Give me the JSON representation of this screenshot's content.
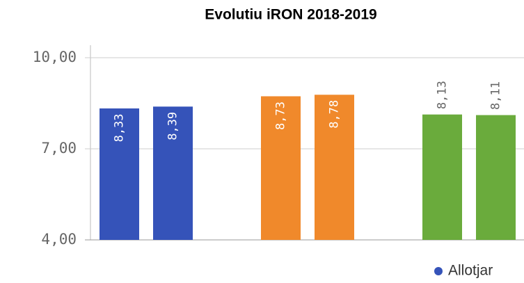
{
  "chart_data": {
    "type": "bar",
    "title": "Evolutiu iRON 2018-2019",
    "series": [
      {
        "name": "Allotjar",
        "color": "#3553b9",
        "values": [
          8.33,
          8.39
        ],
        "value_labels": [
          "8,33",
          "8,39"
        ],
        "label_position": "inside"
      },
      {
        "color": "#f0892b",
        "values": [
          8.73,
          8.78
        ],
        "value_labels": [
          "8,73",
          "8,78"
        ],
        "label_position": "inside"
      },
      {
        "color": "#6aab3c",
        "values": [
          8.13,
          8.11
        ],
        "value_labels": [
          "8,13",
          "8,11"
        ],
        "label_position": "outside"
      }
    ],
    "ylim": [
      4,
      10
    ],
    "yticks": [
      {
        "value": 4,
        "label": "4,00"
      },
      {
        "value": 7,
        "label": "7,00"
      },
      {
        "value": 10,
        "label": "10,00"
      }
    ],
    "grid": true
  }
}
